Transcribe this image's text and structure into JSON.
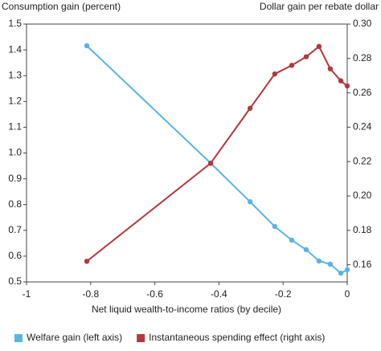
{
  "chart_data": {
    "type": "line",
    "ylabel": "Consumption gain (percent)",
    "y2label": "Dollar gain per rebate dollar",
    "xlabel": "Net liquid wealth-to-income ratios (by decile)",
    "x": [
      -0.812,
      -0.426,
      -0.303,
      -0.226,
      -0.173,
      -0.128,
      -0.088,
      -0.053,
      -0.02,
      0
    ],
    "series": [
      {
        "name": "Welfare gain (left axis)",
        "color": "#5ab4e0",
        "axis": "y",
        "values": [
          1.416,
          0.961,
          0.811,
          0.715,
          0.662,
          0.625,
          0.581,
          0.569,
          0.534,
          0.547
        ]
      },
      {
        "name": "Instantaneous spending effect (right axis)",
        "color": "#b3373b",
        "axis": "y2",
        "values": [
          0.162,
          0.219,
          0.251,
          0.271,
          0.276,
          0.281,
          0.287,
          0.274,
          0.267,
          0.264
        ]
      }
    ],
    "xlim": [
      -1,
      0
    ],
    "xticks": [
      -1,
      -0.8,
      -0.6,
      -0.4,
      -0.2,
      0
    ],
    "ylim": [
      0.5,
      1.5
    ],
    "yticks": [
      0.5,
      0.6,
      0.7,
      0.8,
      0.9,
      {
        "value": 1,
        "label": "1.0"
      },
      1.1,
      1.2,
      1.3,
      1.4,
      1.5
    ],
    "y2lim": [
      0.15,
      0.3
    ],
    "y2ticks": [
      0.16,
      0.18,
      {
        "value": 0.2,
        "label": "0.20"
      },
      0.22,
      0.24,
      0.26,
      0.28,
      {
        "value": 0.3,
        "label": "0.30"
      }
    ],
    "legend": "bottom"
  }
}
